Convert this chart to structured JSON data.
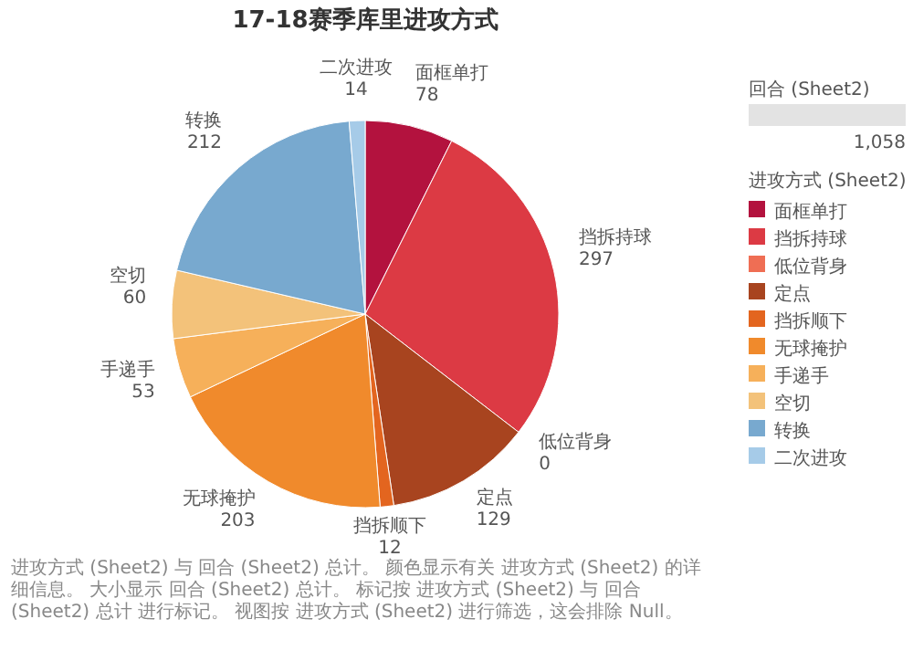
{
  "chart_data": {
    "type": "pie",
    "title": "17-18赛季库里进攻方式",
    "categories": [
      "面框单打",
      "挡拆持球",
      "低位背身",
      "定点",
      "挡拆顺下",
      "无球掩护",
      "手递手",
      "空切",
      "转换",
      "二次进攻"
    ],
    "values": [
      78,
      297,
      0,
      129,
      12,
      203,
      53,
      60,
      212,
      14
    ],
    "colors": [
      "#b3123e",
      "#dc3a44",
      "#ef6e54",
      "#a8441f",
      "#e3651f",
      "#f08a2c",
      "#f6b05a",
      "#f3c27a",
      "#78a9cf",
      "#a6cbe8"
    ],
    "value_labels": [
      "78",
      "297",
      "0",
      "129",
      "12",
      "203",
      "53",
      "60",
      "212",
      "14"
    ],
    "legend": "right",
    "legend_title": "进攻方式 (Sheet2)",
    "annotations": [
      "回合 (Sheet2)",
      "1,058",
      "进攻方式 (Sheet2) 与 回合 (Sheet2) 总计。 颜色显示有关 进攻方式 (Sheet2) 的详细信息。 大小显示 回合 (Sheet2) 总计。 标记按 进攻方式 (Sheet2) 与 回合 (Sheet2) 总计 进行标记。 视图按 进攻方式 (Sheet2) 进行筛选，这会排除 Null。"
    ]
  }
}
